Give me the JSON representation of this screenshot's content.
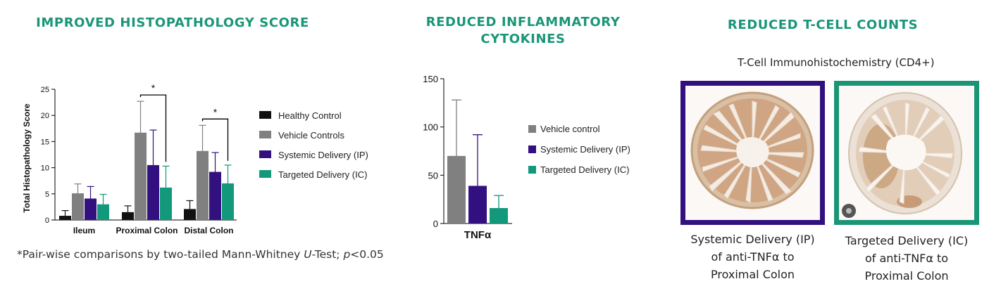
{
  "titles": {
    "histo": "IMPROVED HISTOPATHOLOGY SCORE",
    "cyto_line1": "REDUCED INFLAMMATORY",
    "cyto_line2": "CYTOKINES",
    "tcell": "REDUCED T-CELL COUNTS"
  },
  "colors": {
    "accent": "#1a9677",
    "series": [
      "#111111",
      "#808080",
      "#33107f",
      "#12987a"
    ],
    "ip_frame": "#33107f",
    "ic_frame": "#1a9677"
  },
  "chart_data": [
    {
      "type": "bar",
      "title": "IMPROVED HISTOPATHOLOGY SCORE",
      "ylabel": "Total Histopathology Score",
      "xlabel": "",
      "ylim": [
        0,
        25
      ],
      "yticks": [
        0,
        5,
        10,
        15,
        20,
        25
      ],
      "categories": [
        "Ileum",
        "Proximal Colon",
        "Distal Colon"
      ],
      "series": [
        {
          "name": "Healthy Control",
          "values": [
            0.8,
            1.5,
            2.1
          ],
          "error": [
            1.0,
            1.2,
            1.6
          ]
        },
        {
          "name": "Vehicle Controls",
          "values": [
            5.1,
            16.7,
            13.2
          ],
          "error": [
            1.8,
            6.0,
            4.9
          ]
        },
        {
          "name": "Systemic Delivery (IP)",
          "values": [
            4.1,
            10.5,
            9.2
          ],
          "error": [
            2.3,
            6.7,
            3.7
          ]
        },
        {
          "name": "Targeted Delivery (IC)",
          "values": [
            3.0,
            6.2,
            7.0
          ],
          "error": [
            1.9,
            4.1,
            3.5
          ]
        }
      ],
      "significance": [
        {
          "category": "Proximal Colon",
          "between": [
            "Vehicle Controls",
            "Targeted Delivery (IC)"
          ],
          "label": "*"
        },
        {
          "category": "Distal Colon",
          "between": [
            "Vehicle Controls",
            "Targeted Delivery (IC)"
          ],
          "label": "*"
        }
      ],
      "footnote": {
        "prefix": "*Pair-wise comparisons by two-tailed Mann-Whitney ",
        "u": "U",
        "mid": "-Test; ",
        "p": "p",
        "suffix": "<0.05"
      }
    },
    {
      "type": "bar",
      "title": "REDUCED INFLAMMATORY CYTOKINES",
      "ylabel": "",
      "xlabel": "",
      "ylim": [
        0,
        150
      ],
      "yticks": [
        0,
        50,
        100,
        150
      ],
      "categories": [
        "TNFα"
      ],
      "series": [
        {
          "name": "Vehicle control",
          "values": [
            70
          ],
          "error": [
            58
          ]
        },
        {
          "name": "Systemic Delivery (IP)",
          "values": [
            39
          ],
          "error": [
            53
          ]
        },
        {
          "name": "Targeted Delivery (IC)",
          "values": [
            16
          ],
          "error": [
            13
          ]
        }
      ]
    }
  ],
  "tcell": {
    "subtitle": "T-Cell Immunohistochemistry (CD4+)",
    "images": [
      {
        "caption_line1": "Systemic Delivery (IP)",
        "caption_line2": "of anti-TNFα  to",
        "caption_line3": "Proximal Colon"
      },
      {
        "caption_line1": "Targeted Delivery (IC)",
        "caption_line2": "of anti-TNFα to",
        "caption_line3": "Proximal Colon"
      }
    ]
  }
}
